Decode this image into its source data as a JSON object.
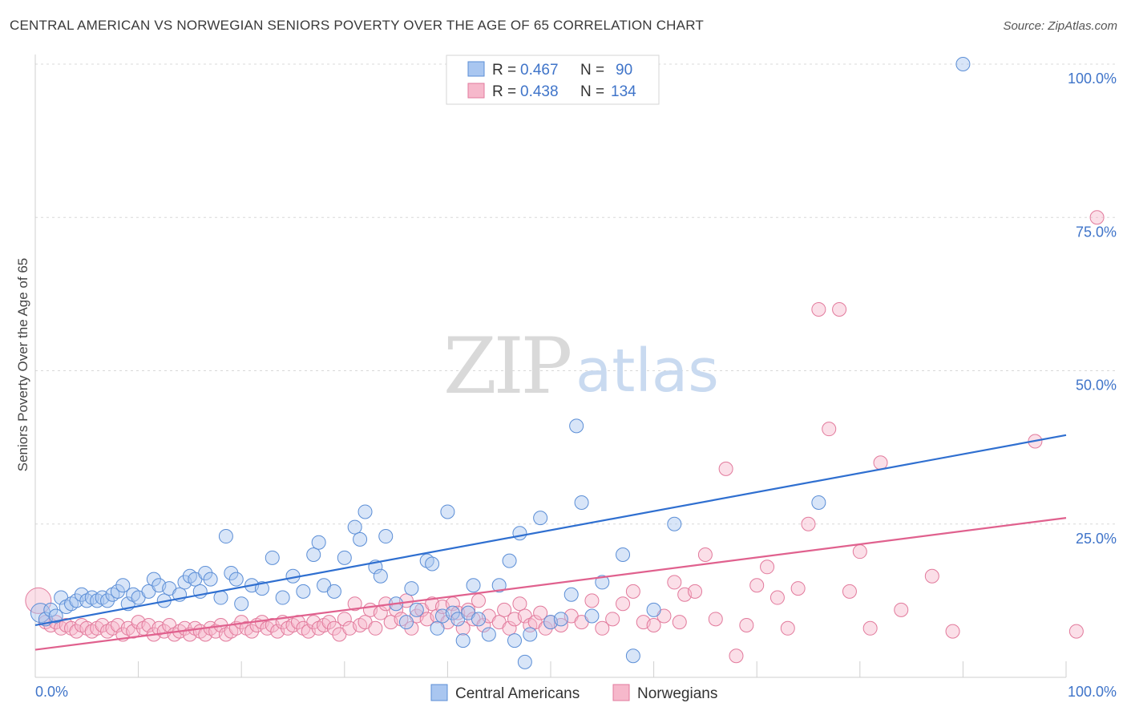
{
  "title": "CENTRAL AMERICAN VS NORWEGIAN SENIORS POVERTY OVER THE AGE OF 65 CORRELATION CHART",
  "source": "Source: ZipAtlas.com",
  "watermark": {
    "zip": "ZIP",
    "atlas": "atlas"
  },
  "colors": {
    "blue_fill": "#a9c6f0",
    "blue_stroke": "#5b8ed6",
    "blue_line": "#2f6fd0",
    "pink_fill": "#f6b8cb",
    "pink_stroke": "#e27a9c",
    "pink_line": "#e0618e",
    "grid": "#d8d8d8",
    "tick_text": "#3f74c9"
  },
  "legend": {
    "items": [
      {
        "r_label": "R = ",
        "r_value": "0.467",
        "n_label": "N = ",
        "n_value": "90"
      },
      {
        "r_label": "R = ",
        "r_value": "0.438",
        "n_label": "N = ",
        "n_value": "134"
      }
    ]
  },
  "chart_data": {
    "type": "scatter",
    "title": "CENTRAL AMERICAN VS NORWEGIAN SENIORS POVERTY OVER THE AGE OF 65 CORRELATION CHART",
    "xlabel": "",
    "ylabel": "Seniors Poverty Over the Age of 65",
    "xlim": [
      0,
      100
    ],
    "ylim": [
      0,
      100
    ],
    "x_tick_labels": [
      "0.0%",
      "100.0%"
    ],
    "y_ticks": [
      25,
      50,
      75,
      100
    ],
    "y_tick_labels": [
      "25.0%",
      "50.0%",
      "75.0%",
      "100.0%"
    ],
    "grid": true,
    "legend_position": "top-center",
    "series": [
      {
        "name": "Central Americans",
        "color": "#a9c6f0",
        "trend": {
          "x": [
            0,
            100
          ],
          "y": [
            8.5,
            39.5
          ]
        },
        "points": [
          [
            0.5,
            10.5
          ],
          [
            1,
            9.5
          ],
          [
            1.5,
            11
          ],
          [
            2,
            10
          ],
          [
            2.5,
            13
          ],
          [
            3,
            11.5
          ],
          [
            3.5,
            12
          ],
          [
            4,
            12.5
          ],
          [
            4.5,
            13.5
          ],
          [
            5,
            12.5
          ],
          [
            5.5,
            13
          ],
          [
            6,
            12.5
          ],
          [
            6.5,
            13
          ],
          [
            7,
            12.5
          ],
          [
            7.5,
            13.5
          ],
          [
            8,
            14
          ],
          [
            8.5,
            15
          ],
          [
            9,
            12
          ],
          [
            9.5,
            13.5
          ],
          [
            10,
            13
          ],
          [
            11,
            14
          ],
          [
            11.5,
            16
          ],
          [
            12,
            15
          ],
          [
            12.5,
            12.5
          ],
          [
            13,
            14.5
          ],
          [
            14,
            13.5
          ],
          [
            14.5,
            15.5
          ],
          [
            15,
            16.5
          ],
          [
            15.5,
            16
          ],
          [
            16,
            14
          ],
          [
            16.5,
            17
          ],
          [
            17,
            16
          ],
          [
            18,
            13
          ],
          [
            18.5,
            23
          ],
          [
            19,
            17
          ],
          [
            19.5,
            16
          ],
          [
            20,
            12
          ],
          [
            21,
            15
          ],
          [
            22,
            14.5
          ],
          [
            23,
            19.5
          ],
          [
            24,
            13
          ],
          [
            25,
            16.5
          ],
          [
            26,
            14
          ],
          [
            27,
            20
          ],
          [
            27.5,
            22
          ],
          [
            28,
            15
          ],
          [
            29,
            14
          ],
          [
            30,
            19.5
          ],
          [
            31,
            24.5
          ],
          [
            31.5,
            22.5
          ],
          [
            32,
            27
          ],
          [
            33,
            18
          ],
          [
            33.5,
            16.5
          ],
          [
            34,
            23
          ],
          [
            35,
            12
          ],
          [
            36,
            9
          ],
          [
            36.5,
            14.5
          ],
          [
            37,
            11
          ],
          [
            38,
            19
          ],
          [
            38.5,
            18.5
          ],
          [
            39,
            8
          ],
          [
            39.5,
            10
          ],
          [
            40,
            27
          ],
          [
            40.5,
            10.5
          ],
          [
            41,
            9.5
          ],
          [
            41.5,
            6
          ],
          [
            42,
            10.5
          ],
          [
            42.5,
            15
          ],
          [
            43,
            9.5
          ],
          [
            44,
            7
          ],
          [
            45,
            15
          ],
          [
            46,
            19
          ],
          [
            46.5,
            6
          ],
          [
            47,
            23.5
          ],
          [
            47.5,
            2.5
          ],
          [
            48,
            7
          ],
          [
            49,
            26
          ],
          [
            50,
            9
          ],
          [
            51,
            9.5
          ],
          [
            52,
            13.5
          ],
          [
            52.5,
            41
          ],
          [
            53,
            28.5
          ],
          [
            54,
            10
          ],
          [
            55,
            15.5
          ],
          [
            57,
            20
          ],
          [
            58,
            3.5
          ],
          [
            60,
            11
          ],
          [
            62,
            25
          ],
          [
            76,
            28.5
          ],
          [
            90,
            100
          ]
        ]
      },
      {
        "name": "Norwegians",
        "color": "#f6b8cb",
        "trend": {
          "x": [
            0,
            100
          ],
          "y": [
            4.5,
            26
          ]
        },
        "points": [
          [
            0.3,
            12.5
          ],
          [
            1,
            9
          ],
          [
            1.5,
            8.5
          ],
          [
            2,
            9
          ],
          [
            2.5,
            8
          ],
          [
            3,
            8.5
          ],
          [
            3.5,
            8
          ],
          [
            4,
            7.5
          ],
          [
            4.5,
            8.5
          ],
          [
            5,
            8
          ],
          [
            5.5,
            7.5
          ],
          [
            6,
            8
          ],
          [
            6.5,
            8.5
          ],
          [
            7,
            7.5
          ],
          [
            7.5,
            8
          ],
          [
            8,
            8.5
          ],
          [
            8.5,
            7
          ],
          [
            9,
            8
          ],
          [
            9.5,
            7.5
          ],
          [
            10,
            9
          ],
          [
            10.5,
            8
          ],
          [
            11,
            8.5
          ],
          [
            11.5,
            7
          ],
          [
            12,
            8
          ],
          [
            12.5,
            7.5
          ],
          [
            13,
            8.5
          ],
          [
            13.5,
            7
          ],
          [
            14,
            7.5
          ],
          [
            14.5,
            8
          ],
          [
            15,
            7
          ],
          [
            15.5,
            8
          ],
          [
            16,
            7.5
          ],
          [
            16.5,
            7
          ],
          [
            17,
            8
          ],
          [
            17.5,
            7.5
          ],
          [
            18,
            8.5
          ],
          [
            18.5,
            7
          ],
          [
            19,
            7.5
          ],
          [
            19.5,
            8
          ],
          [
            20,
            9
          ],
          [
            20.5,
            8
          ],
          [
            21,
            7.5
          ],
          [
            21.5,
            8.5
          ],
          [
            22,
            9
          ],
          [
            22.5,
            8
          ],
          [
            23,
            8.5
          ],
          [
            23.5,
            7.5
          ],
          [
            24,
            9
          ],
          [
            24.5,
            8
          ],
          [
            25,
            8.5
          ],
          [
            25.5,
            9
          ],
          [
            26,
            8
          ],
          [
            26.5,
            7.5
          ],
          [
            27,
            9
          ],
          [
            27.5,
            8
          ],
          [
            28,
            8.5
          ],
          [
            28.5,
            9
          ],
          [
            29,
            8
          ],
          [
            29.5,
            7
          ],
          [
            30,
            9.5
          ],
          [
            30.5,
            8
          ],
          [
            31,
            12
          ],
          [
            31.5,
            8.5
          ],
          [
            32,
            9
          ],
          [
            32.5,
            11
          ],
          [
            33,
            8
          ],
          [
            33.5,
            10.5
          ],
          [
            34,
            12
          ],
          [
            34.5,
            9
          ],
          [
            35,
            11
          ],
          [
            35.5,
            9.5
          ],
          [
            36,
            12.5
          ],
          [
            36.5,
            8
          ],
          [
            37,
            10
          ],
          [
            37.5,
            11
          ],
          [
            38,
            9.5
          ],
          [
            38.5,
            12
          ],
          [
            39,
            10
          ],
          [
            39.5,
            11.5
          ],
          [
            40,
            9
          ],
          [
            40.5,
            12
          ],
          [
            41,
            10.5
          ],
          [
            41.5,
            8
          ],
          [
            42,
            11
          ],
          [
            42.5,
            9.5
          ],
          [
            43,
            12.5
          ],
          [
            43.5,
            8.5
          ],
          [
            44,
            10
          ],
          [
            45,
            9
          ],
          [
            45.5,
            11
          ],
          [
            46,
            8
          ],
          [
            46.5,
            9.5
          ],
          [
            47,
            12
          ],
          [
            47.5,
            10
          ],
          [
            48,
            8.5
          ],
          [
            48.5,
            9
          ],
          [
            49,
            10.5
          ],
          [
            49.5,
            8
          ],
          [
            50,
            9
          ],
          [
            51,
            8.5
          ],
          [
            52,
            10
          ],
          [
            53,
            9
          ],
          [
            54,
            12.5
          ],
          [
            55,
            8
          ],
          [
            56,
            9.5
          ],
          [
            57,
            12
          ],
          [
            58,
            14
          ],
          [
            59,
            9
          ],
          [
            60,
            8.5
          ],
          [
            61,
            10
          ],
          [
            62,
            15.5
          ],
          [
            62.5,
            9
          ],
          [
            63,
            13.5
          ],
          [
            64,
            14
          ],
          [
            65,
            20
          ],
          [
            66,
            9.5
          ],
          [
            67,
            34
          ],
          [
            68,
            3.5
          ],
          [
            69,
            8.5
          ],
          [
            70,
            15
          ],
          [
            71,
            18
          ],
          [
            72,
            13
          ],
          [
            73,
            8
          ],
          [
            74,
            14.5
          ],
          [
            75,
            25
          ],
          [
            76,
            60
          ],
          [
            77,
            40.5
          ],
          [
            78,
            60
          ],
          [
            79,
            14
          ],
          [
            80,
            20.5
          ],
          [
            81,
            8
          ],
          [
            82,
            35
          ],
          [
            84,
            11
          ],
          [
            87,
            16.5
          ],
          [
            89,
            7.5
          ],
          [
            97,
            38.5
          ],
          [
            101,
            7.5
          ],
          [
            103,
            75
          ]
        ]
      }
    ]
  },
  "bottom_legend": [
    "Central Americans",
    "Norwegians"
  ]
}
